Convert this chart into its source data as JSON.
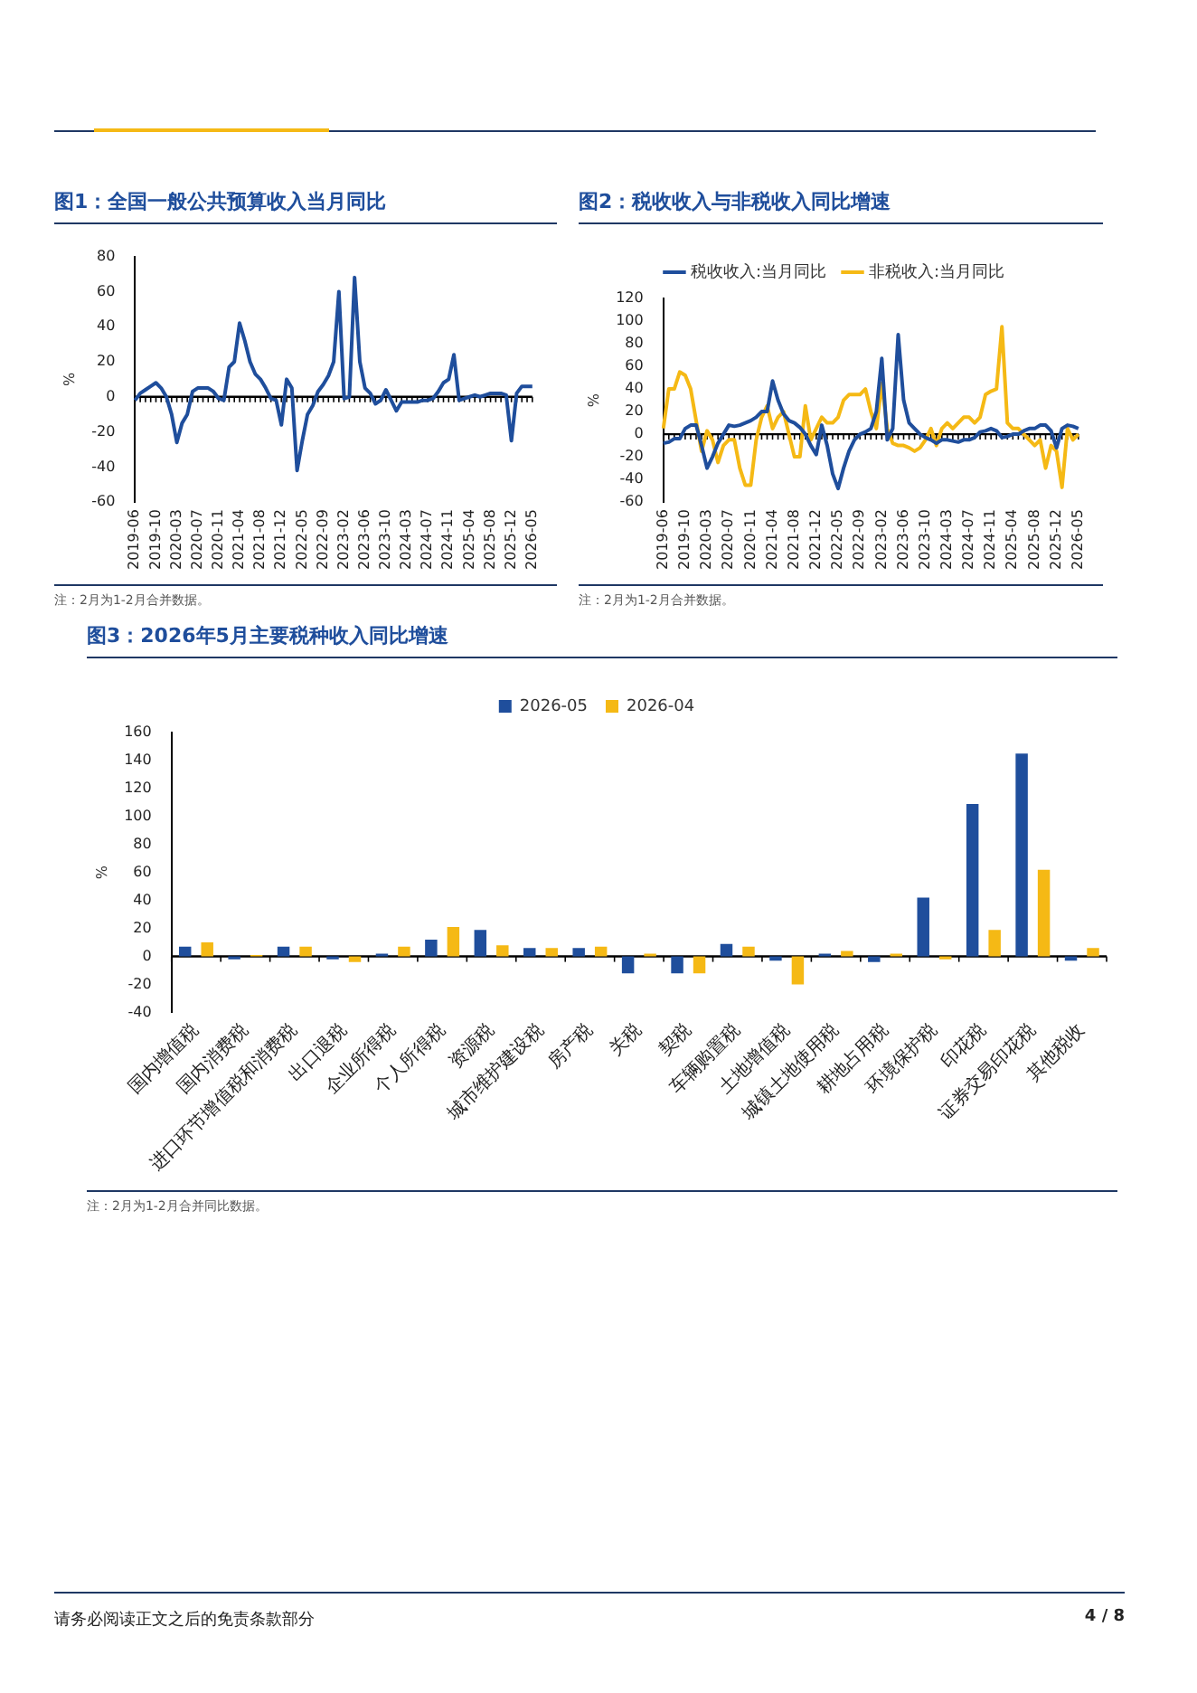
{
  "chart_data": [
    {
      "type": "line",
      "title": "图1：全国一般公共预算收入当月同比",
      "ylabel": "%",
      "color": "#1f4e9c",
      "marker": "none",
      "grid": false,
      "legend": false,
      "categories": [
        "2019-06",
        null,
        null,
        null,
        "2019-10",
        null,
        null,
        null,
        "2020-03",
        null,
        null,
        null,
        "2020-07",
        null,
        null,
        null,
        "2020-11",
        null,
        null,
        null,
        "2021-04",
        null,
        null,
        null,
        "2021-08",
        null,
        null,
        null,
        "2021-12",
        null,
        null,
        null,
        "2022-05",
        null,
        null,
        null,
        "2022-09",
        null,
        null,
        null,
        "2023-02",
        null,
        null,
        null,
        "2023-06",
        null,
        null,
        null,
        "2023-10",
        null,
        null,
        null,
        "2024-03",
        null,
        null,
        null,
        "2024-07",
        null,
        null,
        null,
        "2024-11",
        null,
        null,
        null,
        "2025-04",
        null,
        null,
        null,
        "2025-08",
        null,
        null,
        null,
        "2025-12",
        null,
        null,
        null,
        "2026-05"
      ],
      "values": [
        -2,
        2,
        4,
        6,
        8,
        5,
        0,
        -10,
        -26,
        -15,
        -10,
        3,
        5,
        5,
        5,
        3,
        -1,
        -2,
        17,
        20,
        42,
        32,
        20,
        13,
        10,
        5,
        -1,
        -2,
        -16,
        10,
        5,
        -42,
        -25,
        -10,
        -5,
        3,
        7,
        12,
        20,
        60,
        -1,
        0,
        68,
        20,
        5,
        2,
        -4,
        -2,
        4,
        -2,
        -8,
        -3,
        -3,
        -3,
        -3,
        -2,
        -2,
        -1,
        3,
        8,
        10,
        24,
        -2,
        -1,
        0,
        1,
        0,
        1,
        2,
        2,
        2,
        1,
        -25,
        2,
        6,
        6,
        6
      ],
      "ref_lines": [
        {
          "axis": "y",
          "value": 0,
          "color": "#000000"
        }
      ],
      "ylim": [
        -60,
        80
      ],
      "yticks": [
        -60,
        -40,
        -20,
        0,
        20,
        40,
        60,
        80
      ],
      "annotations": [
        "注：2月为1-2月合并数据。"
      ]
    },
    {
      "type": "line",
      "title": "图2：税收收入与非税收入同比增速",
      "ylabel": "%",
      "marker": "none",
      "grid": false,
      "legend": "top",
      "categories": [
        "2019-06",
        null,
        null,
        null,
        "2019-10",
        null,
        null,
        null,
        "2020-03",
        null,
        null,
        null,
        "2020-07",
        null,
        null,
        null,
        "2020-11",
        null,
        null,
        null,
        "2021-04",
        null,
        null,
        null,
        "2021-08",
        null,
        null,
        null,
        "2021-12",
        null,
        null,
        null,
        "2022-05",
        null,
        null,
        null,
        "2022-09",
        null,
        null,
        null,
        "2023-02",
        null,
        null,
        null,
        "2023-06",
        null,
        null,
        null,
        "2023-10",
        null,
        null,
        null,
        "2024-03",
        null,
        null,
        null,
        "2024-07",
        null,
        null,
        null,
        "2024-11",
        null,
        null,
        null,
        "2025-04",
        null,
        null,
        null,
        "2025-08",
        null,
        null,
        null,
        "2025-12",
        null,
        null,
        null,
        "2026-05"
      ],
      "series": [
        {
          "name": "税收收入:当月同比",
          "color": "#1f4e9c",
          "values": [
            -8,
            -7,
            -4,
            -4,
            5,
            8,
            8,
            -10,
            -30,
            -20,
            -8,
            0,
            8,
            7,
            8,
            10,
            12,
            15,
            20,
            20,
            47,
            30,
            18,
            12,
            10,
            6,
            0,
            -10,
            -18,
            8,
            -10,
            -35,
            -48,
            -30,
            -15,
            -5,
            0,
            2,
            5,
            20,
            67,
            -5,
            5,
            88,
            30,
            10,
            5,
            0,
            -3,
            -5,
            -8,
            -5,
            -5,
            -6,
            -7,
            -5,
            -5,
            -3,
            2,
            3,
            5,
            3,
            -3,
            -2,
            0,
            0,
            3,
            5,
            5,
            8,
            8,
            3,
            -12,
            5,
            8,
            7,
            5
          ]
        },
        {
          "name": "非税收入:当月同比",
          "color": "#f5b915",
          "values": [
            5,
            40,
            40,
            55,
            52,
            40,
            12,
            -15,
            3,
            -5,
            -25,
            -10,
            -5,
            -5,
            -30,
            -45,
            -45,
            -5,
            15,
            25,
            5,
            15,
            20,
            0,
            -20,
            -20,
            25,
            -5,
            5,
            15,
            10,
            10,
            15,
            30,
            35,
            35,
            35,
            40,
            20,
            5,
            45,
            5,
            -8,
            -10,
            -10,
            -12,
            -15,
            -12,
            -5,
            5,
            -10,
            5,
            10,
            5,
            10,
            15,
            15,
            10,
            15,
            35,
            38,
            40,
            95,
            10,
            5,
            5,
            0,
            -5,
            -10,
            -5,
            -30,
            -10,
            -15,
            -47,
            5,
            -5,
            0
          ]
        }
      ],
      "ref_lines": [
        {
          "axis": "y",
          "value": 0,
          "color": "#000000"
        }
      ],
      "ylim": [
        -60,
        120
      ],
      "yticks": [
        -60,
        -40,
        -20,
        0,
        20,
        40,
        60,
        80,
        100,
        120
      ],
      "annotations": [
        "注：2月为1-2月合并数据。"
      ]
    },
    {
      "type": "bar",
      "title": "图3：2026年5月主要税种收入同比增速",
      "ylabel": "%",
      "grid": false,
      "legend": "top",
      "categories": [
        "国内增值税",
        "国内消费税",
        "进口环节增值税和消费税",
        "出口退税",
        "企业所得税",
        "个人所得税",
        "资源税",
        "城市维护建设税",
        "房产税",
        "关税",
        "契税",
        "车辆购置税",
        "土地增值税",
        "城镇土地使用税",
        "耕地占用税",
        "环境保护税",
        "印花税",
        "证券交易印花税",
        "其他税收"
      ],
      "series": [
        {
          "name": "2026-05",
          "color": "#1f4e9c",
          "values": [
            7,
            -2,
            7,
            -2,
            2,
            12,
            19,
            6,
            6,
            -12,
            -12,
            9,
            -3,
            2,
            -4,
            42,
            109,
            145,
            -3
          ]
        },
        {
          "name": "2026-04",
          "color": "#f5b915",
          "values": [
            10,
            1,
            7,
            -4,
            7,
            21,
            8,
            6,
            7,
            2,
            -12,
            7,
            -20,
            4,
            2,
            -2,
            19,
            62,
            6
          ]
        }
      ],
      "ref_lines": [
        {
          "axis": "y",
          "value": 0,
          "color": "#000000"
        }
      ],
      "ylim": [
        -40,
        160
      ],
      "yticks": [
        -40,
        -20,
        0,
        20,
        40,
        60,
        80,
        100,
        120,
        140,
        160
      ],
      "annotations": [
        "注：2月为1-2月合并同比数据。",
        "请务必阅读正文之后的免责条款部分",
        "4 / 8"
      ]
    }
  ]
}
